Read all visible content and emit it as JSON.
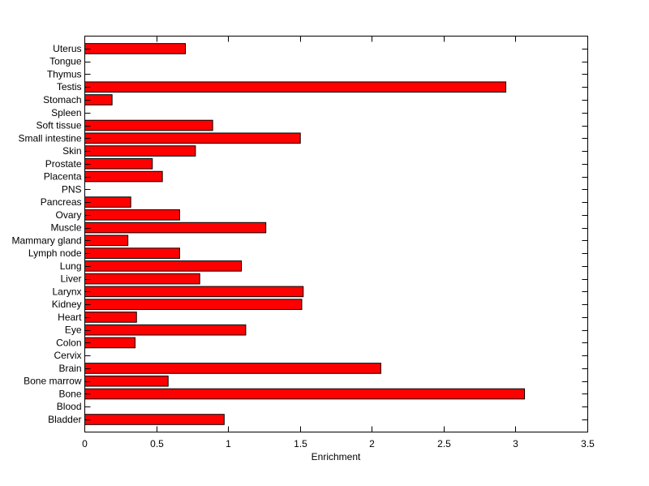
{
  "chart_data": {
    "type": "bar",
    "orientation": "horizontal",
    "title": "",
    "xlabel": "Enrichment",
    "ylabel": "",
    "xlim": [
      0,
      3.5
    ],
    "xticks": [
      0,
      0.5,
      1,
      1.5,
      2,
      2.5,
      3,
      3.5
    ],
    "xtick_labels": [
      "0",
      "0.5",
      "1",
      "1.5",
      "2",
      "2.5",
      "3",
      "3.5"
    ],
    "grid": false,
    "bar_color": "#ff0000",
    "bar_edge_color": "#000000",
    "categories": [
      "Bladder",
      "Blood",
      "Bone",
      "Bone marrow",
      "Brain",
      "Cervix",
      "Colon",
      "Eye",
      "Heart",
      "Kidney",
      "Larynx",
      "Liver",
      "Lung",
      "Lymph node",
      "Mammary gland",
      "Muscle",
      "Ovary",
      "Pancreas",
      "PNS",
      "Placenta",
      "Prostate",
      "Skin",
      "Small intestine",
      "Soft tissue",
      "Spleen",
      "Stomach",
      "Testis",
      "Thymus",
      "Tongue",
      "Uterus"
    ],
    "values": [
      0.97,
      0,
      3.06,
      0.58,
      2.06,
      0,
      0.35,
      1.12,
      0.36,
      1.51,
      1.52,
      0.8,
      1.09,
      0.66,
      0.3,
      1.26,
      0.66,
      0.32,
      0,
      0.54,
      0.47,
      0.77,
      1.5,
      0.89,
      0,
      0.19,
      2.93,
      0,
      0,
      0.7
    ]
  }
}
